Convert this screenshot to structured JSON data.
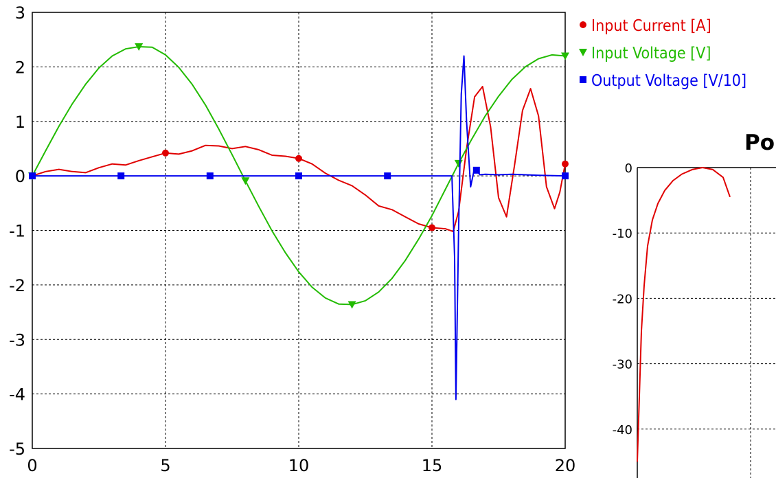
{
  "chart_data": [
    {
      "type": "line",
      "title": "",
      "xlabel": "",
      "ylabel": "",
      "xlim": [
        0,
        20
      ],
      "ylim": [
        -5,
        3
      ],
      "x_ticks": [
        "0",
        "5",
        "10",
        "15",
        "20"
      ],
      "y_ticks": [
        "3",
        "2",
        "1",
        "0",
        "-1",
        "-2",
        "-3",
        "-4",
        "-5"
      ],
      "grid": true,
      "legend_position": "top-right",
      "series": [
        {
          "name": "Input Current [A]",
          "color": "#e00000",
          "marker": "circle",
          "x": [
            0,
            0.5,
            1,
            1.5,
            2,
            2.5,
            3,
            3.5,
            4,
            4.5,
            5,
            5.5,
            6,
            6.5,
            7,
            7.5,
            8,
            8.5,
            9,
            9.5,
            10,
            10.5,
            11,
            11.5,
            12,
            12.5,
            13,
            13.5,
            14,
            14.5,
            15,
            15.5,
            15.8,
            16,
            16.3,
            16.6,
            16.9,
            17.2,
            17.5,
            17.8,
            18.1,
            18.4,
            18.7,
            19,
            19.3,
            19.6,
            19.8,
            20
          ],
          "y": [
            0,
            0.08,
            0.12,
            0.08,
            0.06,
            0.15,
            0.22,
            0.2,
            0.28,
            0.35,
            0.42,
            0.4,
            0.46,
            0.56,
            0.55,
            0.5,
            0.54,
            0.48,
            0.38,
            0.36,
            0.32,
            0.22,
            0.05,
            -0.08,
            -0.18,
            -0.35,
            -0.55,
            -0.62,
            -0.75,
            -0.88,
            -0.95,
            -0.97,
            -1.02,
            -0.65,
            0.5,
            1.45,
            1.64,
            0.9,
            -0.4,
            -0.75,
            0.2,
            1.2,
            1.6,
            1.1,
            -0.2,
            -0.6,
            -0.3,
            0.22
          ],
          "marker_x": [
            0,
            5,
            10,
            15,
            20
          ]
        },
        {
          "name": "Input Voltage [V]",
          "color": "#22bb00",
          "marker": "triangle-down",
          "x": [
            0,
            0.5,
            1,
            1.5,
            2,
            2.5,
            3,
            3.5,
            4,
            4.5,
            5,
            5.5,
            6,
            6.5,
            7,
            7.5,
            8,
            8.5,
            9,
            9.5,
            10,
            10.5,
            11,
            11.5,
            12,
            12.5,
            13,
            13.5,
            14,
            14.5,
            15,
            15.5,
            16,
            16.5,
            17,
            17.5,
            18,
            18.5,
            19,
            19.5,
            20
          ],
          "y": [
            0,
            0.46,
            0.91,
            1.32,
            1.68,
            1.98,
            2.2,
            2.33,
            2.37,
            2.36,
            2.22,
            1.99,
            1.68,
            1.3,
            0.86,
            0.39,
            -0.09,
            -0.56,
            -1.01,
            -1.41,
            -1.76,
            -2.04,
            -2.24,
            -2.35,
            -2.36,
            -2.29,
            -2.13,
            -1.88,
            -1.55,
            -1.16,
            -0.73,
            -0.25,
            0.23,
            0.68,
            1.1,
            1.46,
            1.77,
            2.0,
            2.15,
            2.22,
            2.2
          ],
          "marker_x": [
            0,
            4,
            8,
            12,
            16,
            20
          ]
        },
        {
          "name": "Output Voltage [V/10]",
          "color": "#0000ee",
          "marker": "square",
          "x": [
            0,
            3.33,
            6.67,
            10,
            13.33,
            15.75,
            15.85,
            15.9,
            16.0,
            16.1,
            16.2,
            16.3,
            16.45,
            16.6,
            16.8,
            17,
            17.5,
            18,
            19,
            20
          ],
          "y": [
            0,
            0,
            0,
            0,
            0,
            0,
            -1.5,
            -4.1,
            -1.0,
            1.5,
            2.2,
            1.0,
            -0.2,
            0.15,
            0.02,
            0.03,
            0.02,
            0.03,
            0.01,
            0
          ],
          "marker_x": [
            0,
            3.33,
            6.67,
            10,
            13.33,
            16.67,
            20
          ]
        }
      ]
    },
    {
      "type": "line",
      "title": "Po",
      "xlabel": "",
      "ylabel": "",
      "ylim": [
        -45,
        0
      ],
      "y_ticks": [
        "0",
        "-10",
        "-20",
        "-30",
        "-40"
      ],
      "grid": true,
      "series": [
        {
          "name": "",
          "color": "#e00000",
          "x": [
            0,
            0.03,
            0.06,
            0.1,
            0.15,
            0.22,
            0.3,
            0.4,
            0.52,
            0.65,
            0.8,
            0.95,
            1.1,
            1.25,
            1.35
          ],
          "y": [
            -45,
            -35,
            -25,
            -18,
            -12,
            -8,
            -5.5,
            -3.5,
            -2,
            -1,
            -0.3,
            0,
            -0.3,
            -1.5,
            -4.5
          ]
        }
      ]
    }
  ]
}
